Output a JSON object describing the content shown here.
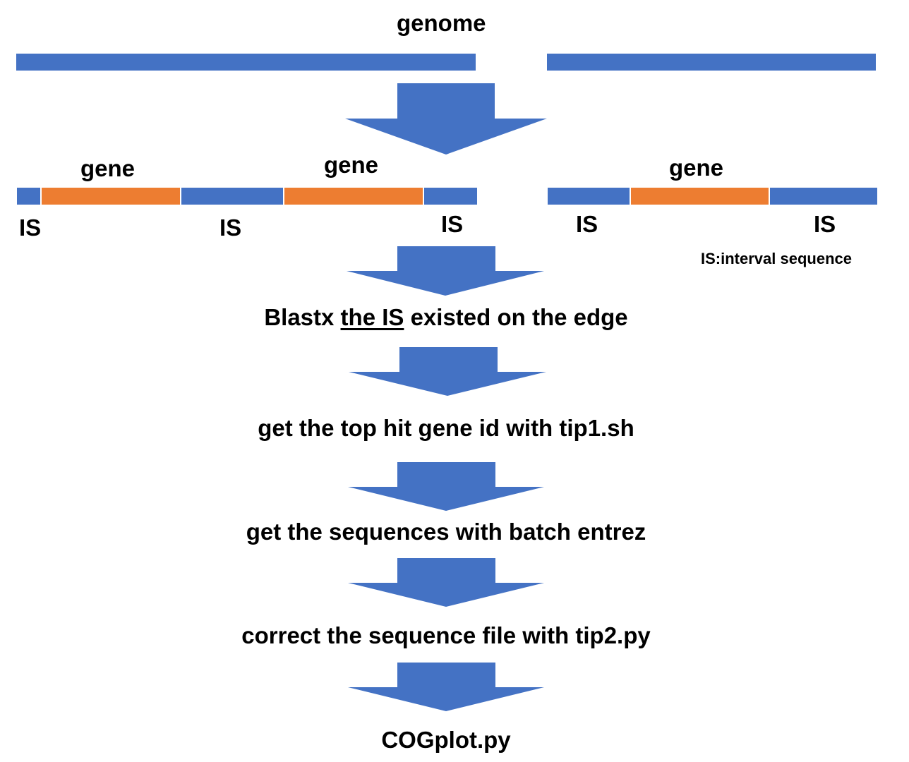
{
  "title": "genome",
  "colors": {
    "interval": "#4472c4",
    "gene": "#ed7d31",
    "arrow": "#4472c4",
    "text": "#000000"
  },
  "annotated": {
    "gene_labels": [
      "gene",
      "gene",
      "gene"
    ],
    "is_labels": [
      "IS",
      "IS",
      "IS",
      "IS",
      "IS"
    ],
    "legend": "IS:interval sequence"
  },
  "steps": {
    "blastx": {
      "before": "Blastx ",
      "emphasis": "the IS",
      "after": " existed on the edge"
    },
    "tophit": "get the top hit gene id with tip1.sh",
    "sequences": "get the sequences with batch entrez",
    "correct": "correct the sequence file with tip2.py",
    "cogplot": "COGplot.py"
  }
}
